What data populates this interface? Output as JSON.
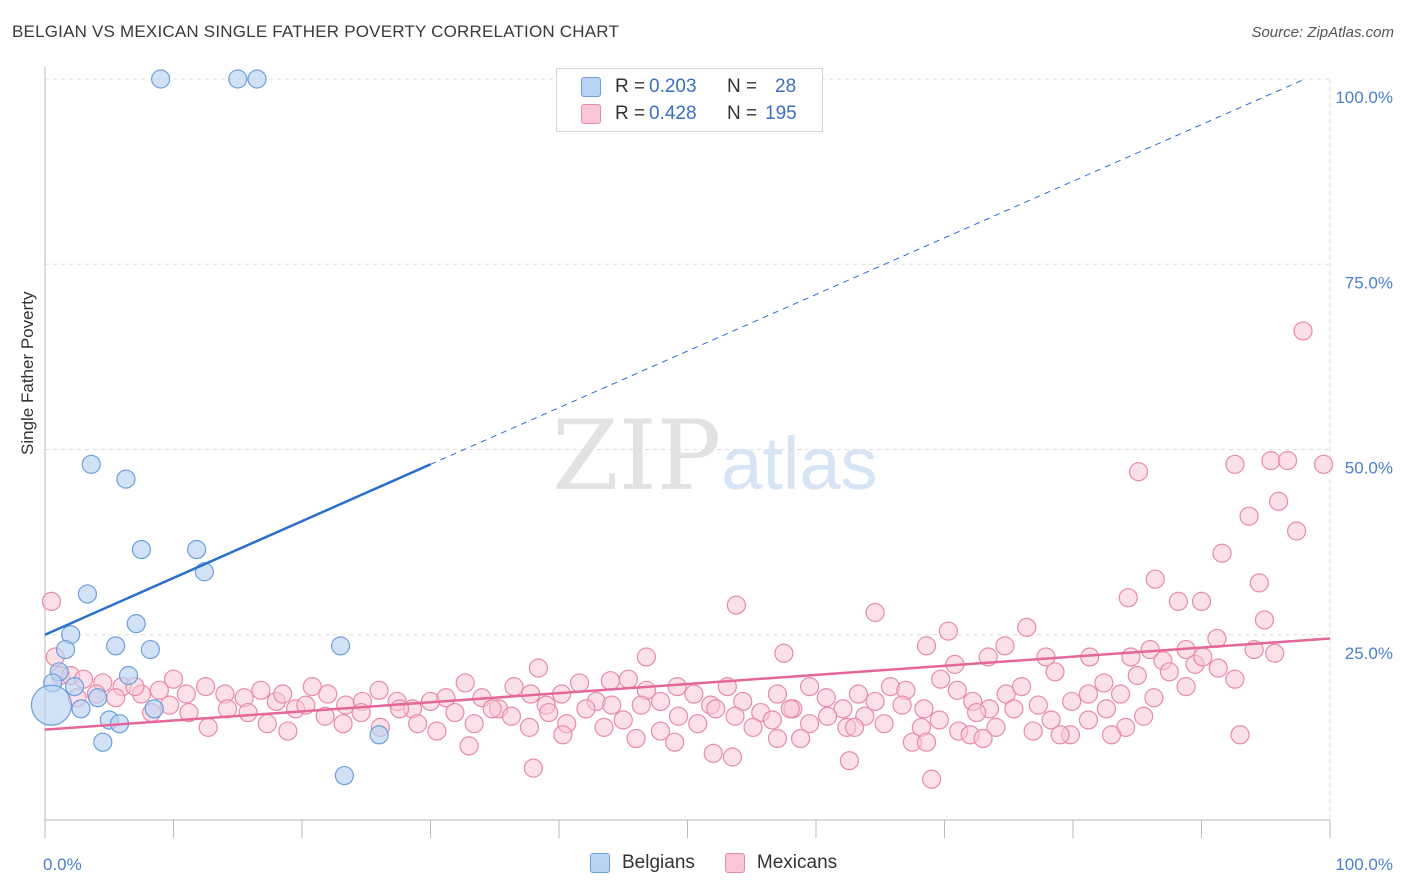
{
  "title": "BELGIAN VS MEXICAN SINGLE FATHER POVERTY CORRELATION CHART",
  "source": "Source: ZipAtlas.com",
  "watermark": {
    "zip": "ZIP",
    "atlas": "atlas"
  },
  "legend": {
    "rows": [
      {
        "r_label": "R =",
        "r_value": "0.203",
        "n_label": "N =",
        "n_value": "28"
      },
      {
        "r_label": "R =",
        "r_value": "0.428",
        "n_label": "N =",
        "n_value": "195"
      }
    ]
  },
  "chart_data": {
    "type": "scatter",
    "title": "BELGIAN VS MEXICAN SINGLE FATHER POVERTY CORRELATION CHART",
    "xlabel": "",
    "ylabel": "Single Father Poverty",
    "xlim": [
      0,
      100
    ],
    "ylim": [
      0,
      100
    ],
    "x_tick_labels": [
      "0.0%",
      "100.0%"
    ],
    "y_tick_values": [
      25,
      50,
      75,
      100
    ],
    "y_tick_labels": [
      "25.0%",
      "50.0%",
      "75.0%",
      "100.0%"
    ],
    "grid": true,
    "legend_position": "top-center",
    "colors": {
      "Belgians": {
        "fill": "#b9d3f3",
        "stroke": "#6d9fdc",
        "line": "#2a6fce"
      },
      "Mexicans": {
        "fill": "#f8c6d6",
        "stroke": "#e88aaa",
        "line": "#e5679a"
      }
    },
    "series": [
      {
        "name": "Belgians",
        "r": 0.203,
        "n": 28,
        "trend": {
          "x0": 0,
          "y0": 25,
          "x1": 30,
          "y1": 48,
          "dashed_to_x": 100,
          "dashed_to_y": 100
        },
        "points": [
          [
            9,
            100
          ],
          [
            15,
            100
          ],
          [
            16.5,
            100
          ],
          [
            3.6,
            48
          ],
          [
            6.3,
            46
          ],
          [
            7.5,
            36.5
          ],
          [
            11.8,
            36.5
          ],
          [
            12.4,
            33.5
          ],
          [
            3.3,
            30.5
          ],
          [
            7.1,
            26.5
          ],
          [
            2,
            25
          ],
          [
            23,
            23.5
          ],
          [
            1.6,
            23
          ],
          [
            5.5,
            23.5
          ],
          [
            8.2,
            23
          ],
          [
            1.1,
            20
          ],
          [
            6.5,
            19.5
          ],
          [
            0.6,
            18.5
          ],
          [
            2.3,
            18
          ],
          [
            4.1,
            16.5
          ],
          [
            2.8,
            15
          ],
          [
            8.5,
            15
          ],
          [
            5,
            13.5
          ],
          [
            5.8,
            13
          ],
          [
            26,
            11.5
          ],
          [
            4.5,
            10.5
          ],
          [
            23.3,
            6
          ],
          [
            0.5,
            15.5
          ]
        ],
        "point_sizes": [
          9,
          9,
          9,
          9,
          9,
          9,
          9,
          9,
          9,
          9,
          9,
          9,
          9,
          9,
          9,
          9,
          9,
          9,
          9,
          9,
          9,
          9,
          9,
          9,
          9,
          9,
          9,
          20
        ]
      },
      {
        "name": "Mexicans",
        "r": 0.428,
        "n": 195,
        "trend": {
          "x0": 0,
          "y0": 12.2,
          "x1": 100,
          "y1": 24.5
        },
        "points": [
          [
            97.9,
            66
          ],
          [
            95.4,
            48.5
          ],
          [
            96.7,
            48.5
          ],
          [
            99.5,
            48
          ],
          [
            92.6,
            48
          ],
          [
            85.1,
            47
          ],
          [
            96,
            43
          ],
          [
            97.4,
            39
          ],
          [
            93.7,
            41
          ],
          [
            91.6,
            36
          ],
          [
            94.5,
            32
          ],
          [
            86.4,
            32.5
          ],
          [
            84.3,
            30
          ],
          [
            88.2,
            29.5
          ],
          [
            90,
            29.5
          ],
          [
            53.8,
            29
          ],
          [
            64.6,
            28
          ],
          [
            94.9,
            27
          ],
          [
            76.4,
            26
          ],
          [
            70.3,
            25.5
          ],
          [
            91.2,
            24.5
          ],
          [
            74.7,
            23.5
          ],
          [
            68.6,
            23.5
          ],
          [
            86,
            23
          ],
          [
            88.8,
            23
          ],
          [
            95.7,
            22.5
          ],
          [
            57.5,
            22.5
          ],
          [
            46.8,
            22
          ],
          [
            73.4,
            22
          ],
          [
            77.9,
            22
          ],
          [
            81.3,
            22
          ],
          [
            84.5,
            22
          ],
          [
            70.8,
            21
          ],
          [
            87,
            21.5
          ],
          [
            89.5,
            21
          ],
          [
            38.4,
            20.5
          ],
          [
            0.8,
            22
          ],
          [
            1.2,
            19.5
          ],
          [
            2,
            19.5
          ],
          [
            3,
            19
          ],
          [
            4.5,
            18.5
          ],
          [
            6,
            18
          ],
          [
            7.5,
            17
          ],
          [
            8.9,
            17.5
          ],
          [
            10,
            19
          ],
          [
            11,
            17
          ],
          [
            12.5,
            18
          ],
          [
            14,
            17
          ],
          [
            15.5,
            16.5
          ],
          [
            16.8,
            17.5
          ],
          [
            18,
            16
          ],
          [
            19.5,
            15
          ],
          [
            20.8,
            18
          ],
          [
            22,
            17
          ],
          [
            23.4,
            15.5
          ],
          [
            24.7,
            16
          ],
          [
            26,
            17.5
          ],
          [
            27.4,
            16
          ],
          [
            28.6,
            15
          ],
          [
            30,
            16
          ],
          [
            31.2,
            16.5
          ],
          [
            32.7,
            18.5
          ],
          [
            34,
            16.5
          ],
          [
            35.3,
            15
          ],
          [
            36.5,
            18
          ],
          [
            37.8,
            17
          ],
          [
            39,
            15.5
          ],
          [
            40.2,
            17
          ],
          [
            41.6,
            18.5
          ],
          [
            42.9,
            16
          ],
          [
            44.1,
            15.5
          ],
          [
            45.4,
            19
          ],
          [
            46.8,
            17.5
          ],
          [
            47.9,
            16
          ],
          [
            49.2,
            18
          ],
          [
            50.5,
            17
          ],
          [
            51.8,
            15.5
          ],
          [
            53.1,
            18
          ],
          [
            54.3,
            16
          ],
          [
            55.7,
            14.5
          ],
          [
            57,
            17
          ],
          [
            58.2,
            15
          ],
          [
            59.5,
            18
          ],
          [
            60.8,
            16.5
          ],
          [
            62.1,
            15
          ],
          [
            63.3,
            17
          ],
          [
            64.6,
            16
          ],
          [
            65.8,
            18
          ],
          [
            67,
            17.5
          ],
          [
            68.4,
            15
          ],
          [
            69.7,
            19
          ],
          [
            71,
            17.5
          ],
          [
            72.2,
            16
          ],
          [
            73.5,
            15
          ],
          [
            74.8,
            17
          ],
          [
            76,
            18
          ],
          [
            77.3,
            15.5
          ],
          [
            78.6,
            20
          ],
          [
            79.9,
            16
          ],
          [
            81.2,
            17
          ],
          [
            82.4,
            18.5
          ],
          [
            83.7,
            17
          ],
          [
            85,
            19.5
          ],
          [
            86.3,
            16.5
          ],
          [
            87.5,
            20
          ],
          [
            88.8,
            18
          ],
          [
            90.1,
            22
          ],
          [
            91.3,
            20.5
          ],
          [
            92.6,
            19
          ],
          [
            94.1,
            23
          ],
          [
            0.5,
            29.5
          ],
          [
            2.5,
            16.5
          ],
          [
            4,
            17
          ],
          [
            5.5,
            16.5
          ],
          [
            7,
            18
          ],
          [
            8.3,
            14.5
          ],
          [
            9.7,
            15.5
          ],
          [
            11.2,
            14.5
          ],
          [
            12.7,
            12.5
          ],
          [
            14.2,
            15
          ],
          [
            15.8,
            14.5
          ],
          [
            17.3,
            13
          ],
          [
            18.9,
            12
          ],
          [
            20.3,
            15.5
          ],
          [
            21.8,
            14
          ],
          [
            23.2,
            13
          ],
          [
            24.6,
            14.5
          ],
          [
            26.1,
            12.5
          ],
          [
            27.6,
            15
          ],
          [
            29,
            13
          ],
          [
            30.5,
            12
          ],
          [
            31.9,
            14.5
          ],
          [
            33.4,
            13
          ],
          [
            34.8,
            15
          ],
          [
            36.3,
            14
          ],
          [
            37.7,
            12.5
          ],
          [
            39.2,
            14.5
          ],
          [
            40.6,
            13
          ],
          [
            42.1,
            15
          ],
          [
            43.5,
            12.5
          ],
          [
            45,
            13.5
          ],
          [
            46.4,
            15.5
          ],
          [
            47.9,
            12
          ],
          [
            49.3,
            14
          ],
          [
            50.8,
            13
          ],
          [
            52.2,
            15
          ],
          [
            53.7,
            14
          ],
          [
            55.1,
            12.5
          ],
          [
            56.6,
            13.5
          ],
          [
            58,
            15
          ],
          [
            59.5,
            13
          ],
          [
            60.9,
            14
          ],
          [
            62.4,
            12.5
          ],
          [
            63.8,
            14
          ],
          [
            65.3,
            13
          ],
          [
            66.7,
            15.5
          ],
          [
            68.2,
            12.5
          ],
          [
            69.6,
            13.5
          ],
          [
            71.1,
            12
          ],
          [
            72.5,
            14.5
          ],
          [
            74,
            12.5
          ],
          [
            75.4,
            15
          ],
          [
            76.9,
            12
          ],
          [
            78.3,
            13.5
          ],
          [
            79.8,
            11.5
          ],
          [
            81.2,
            13.5
          ],
          [
            82.6,
            15
          ],
          [
            84.1,
            12.5
          ],
          [
            85.5,
            14
          ],
          [
            33,
            10
          ],
          [
            40.3,
            11.5
          ],
          [
            46,
            11
          ],
          [
            49,
            10.5
          ],
          [
            53.5,
            8.5
          ],
          [
            52,
            9
          ],
          [
            57,
            11
          ],
          [
            58.8,
            11
          ],
          [
            63,
            12.5
          ],
          [
            67.5,
            10.5
          ],
          [
            68.6,
            10.5
          ],
          [
            72,
            11.5
          ],
          [
            73,
            11
          ],
          [
            79,
            11.5
          ],
          [
            83,
            11.5
          ],
          [
            93,
            11.5
          ],
          [
            38,
            7
          ],
          [
            62.6,
            8
          ],
          [
            69,
            5.5
          ],
          [
            18.5,
            17
          ],
          [
            44,
            18.8
          ]
        ]
      }
    ]
  }
}
